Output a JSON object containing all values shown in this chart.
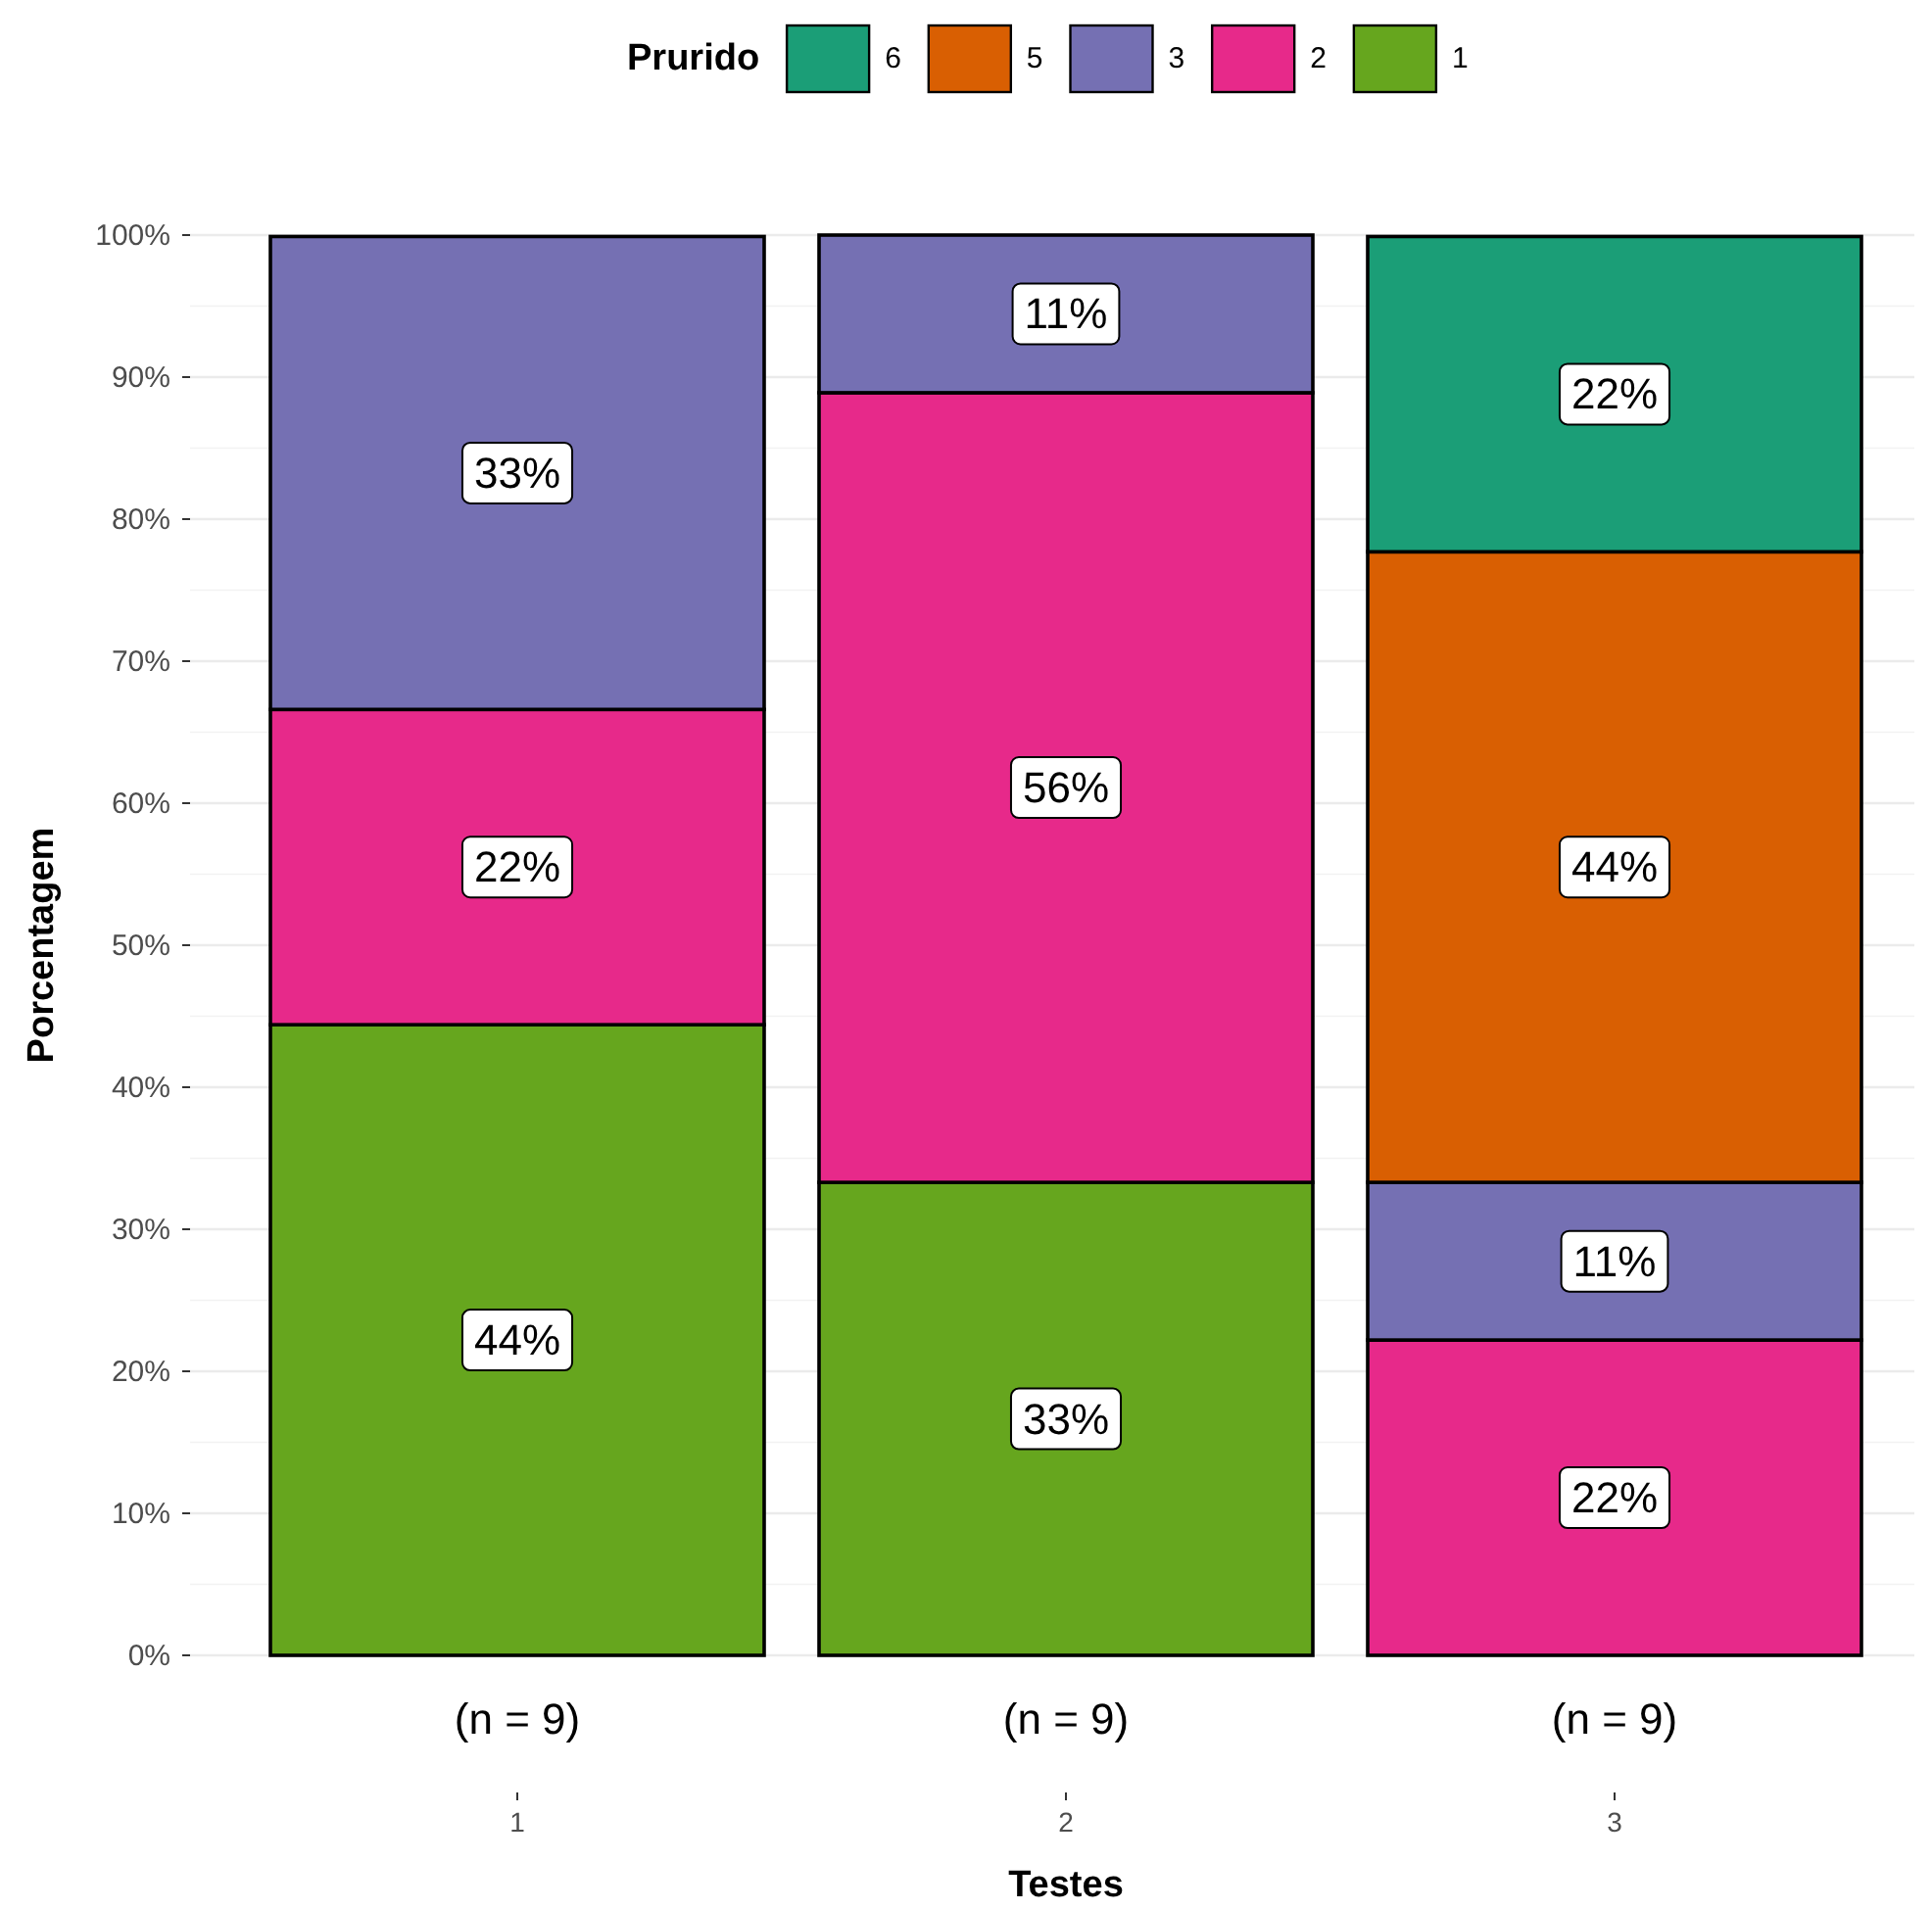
{
  "chart_data": {
    "type": "bar",
    "stacked": true,
    "xlabel": "Testes",
    "ylabel": "Porcentagem",
    "legend_title": "Prurido",
    "legend": "top",
    "grid": "y",
    "categories": [
      "1",
      "2",
      "3"
    ],
    "ylim": [
      0,
      100
    ],
    "yticks": [
      {
        "value": 0,
        "label": "0%"
      },
      {
        "value": 10,
        "label": "10%"
      },
      {
        "value": 20,
        "label": "20%"
      },
      {
        "value": 30,
        "label": "30%"
      },
      {
        "value": 40,
        "label": "40%"
      },
      {
        "value": 50,
        "label": "50%"
      },
      {
        "value": 60,
        "label": "60%"
      },
      {
        "value": 70,
        "label": "70%"
      },
      {
        "value": 80,
        "label": "80%"
      },
      {
        "value": 90,
        "label": "90%"
      },
      {
        "value": 100,
        "label": "100%"
      }
    ],
    "series": [
      {
        "name": "1",
        "color": "#66a61e",
        "values": [
          44.4,
          33.3,
          null
        ],
        "value_labels": [
          "44%",
          "33%",
          null
        ]
      },
      {
        "name": "2",
        "color": "#e7298a",
        "values": [
          22.2,
          55.6,
          22.2
        ],
        "value_labels": [
          "22%",
          "56%",
          "22%"
        ]
      },
      {
        "name": "3",
        "color": "#7570b3",
        "values": [
          33.3,
          11.1,
          11.1
        ],
        "value_labels": [
          "33%",
          "11%",
          "11%"
        ]
      },
      {
        "name": "5",
        "color": "#d95f02",
        "values": [
          null,
          null,
          44.4
        ],
        "value_labels": [
          null,
          null,
          "44%"
        ]
      },
      {
        "name": "6",
        "color": "#1b9e77",
        "values": [
          null,
          null,
          22.2
        ],
        "value_labels": [
          null,
          null,
          "22%"
        ]
      }
    ],
    "annotations": [
      "(n = 9)",
      "(n = 9)",
      "(n = 9)"
    ]
  }
}
